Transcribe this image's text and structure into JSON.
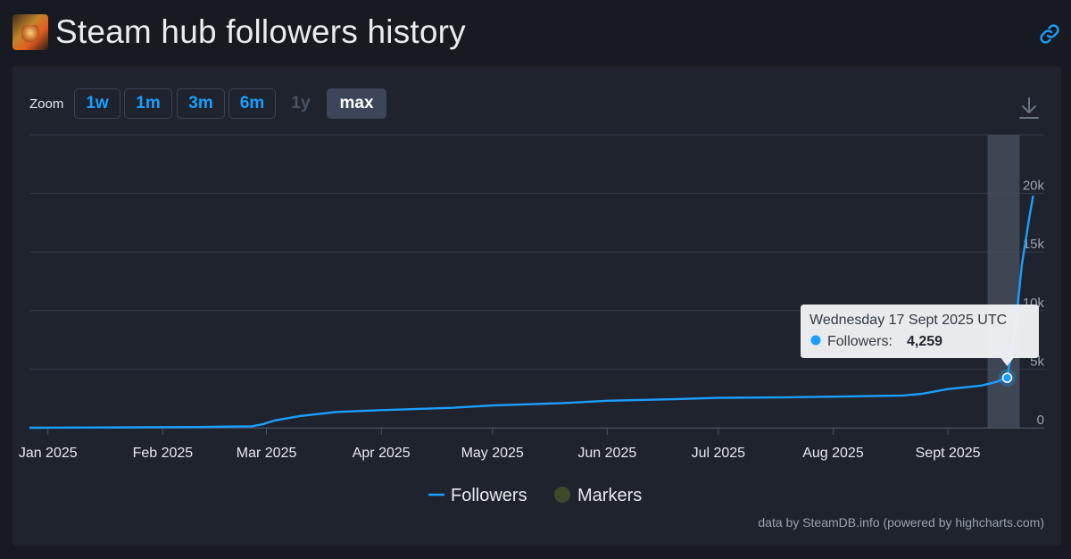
{
  "header": {
    "title": "Steam hub followers history"
  },
  "toolbar": {
    "zoom_label": "Zoom",
    "zoom_buttons": [
      {
        "label": "1w",
        "state": "enabled"
      },
      {
        "label": "1m",
        "state": "enabled"
      },
      {
        "label": "3m",
        "state": "enabled"
      },
      {
        "label": "6m",
        "state": "enabled"
      },
      {
        "label": "1y",
        "state": "disabled"
      },
      {
        "label": "max",
        "state": "active"
      }
    ]
  },
  "icons": {
    "link": "link-icon",
    "download": "download-icon"
  },
  "colors": {
    "series": "#1a9fff",
    "markers": "#3d4a2a",
    "background": "#1e232d",
    "page": "#171a21"
  },
  "chart_data": {
    "type": "line",
    "title": "",
    "xlabel": "",
    "ylabel": "",
    "x_ticks": [
      "Jan 2025",
      "Feb 2025",
      "Mar 2025",
      "Apr 2025",
      "May 2025",
      "Jun 2025",
      "Jul 2025",
      "Aug 2025",
      "Sept 2025"
    ],
    "y_ticks": [
      "0",
      "5k",
      "10k",
      "15k",
      "20k"
    ],
    "ylim": [
      0,
      25000
    ],
    "xlim": [
      "2024-12-27",
      "2025-09-27"
    ],
    "grid": true,
    "legend_position": "bottom-center",
    "legend": [
      "Followers",
      "Markers"
    ],
    "series": [
      {
        "name": "Followers",
        "points": [
          [
            "2024-12-27",
            0
          ],
          [
            "2025-01-15",
            20
          ],
          [
            "2025-02-10",
            60
          ],
          [
            "2025-02-25",
            120
          ],
          [
            "2025-02-28",
            300
          ],
          [
            "2025-03-03",
            600
          ],
          [
            "2025-03-10",
            1000
          ],
          [
            "2025-03-20",
            1350
          ],
          [
            "2025-04-01",
            1500
          ],
          [
            "2025-04-20",
            1700
          ],
          [
            "2025-05-01",
            1900
          ],
          [
            "2025-05-20",
            2100
          ],
          [
            "2025-06-01",
            2300
          ],
          [
            "2025-06-20",
            2450
          ],
          [
            "2025-07-01",
            2550
          ],
          [
            "2025-07-20",
            2600
          ],
          [
            "2025-08-01",
            2650
          ],
          [
            "2025-08-20",
            2750
          ],
          [
            "2025-08-25",
            2900
          ],
          [
            "2025-09-01",
            3300
          ],
          [
            "2025-09-10",
            3600
          ],
          [
            "2025-09-14",
            3900
          ],
          [
            "2025-09-17",
            4259
          ],
          [
            "2025-09-19",
            8000
          ],
          [
            "2025-09-21",
            14000
          ],
          [
            "2025-09-23",
            18000
          ],
          [
            "2025-09-24",
            19800
          ]
        ]
      }
    ],
    "tooltip": {
      "date": "Wednesday 17 Sept 2025 UTC",
      "series_label": "Followers:",
      "value": "4,259",
      "x": "2025-09-17",
      "y": 4259
    }
  },
  "credit": "data by SteamDB.info (powered by highcharts.com)"
}
